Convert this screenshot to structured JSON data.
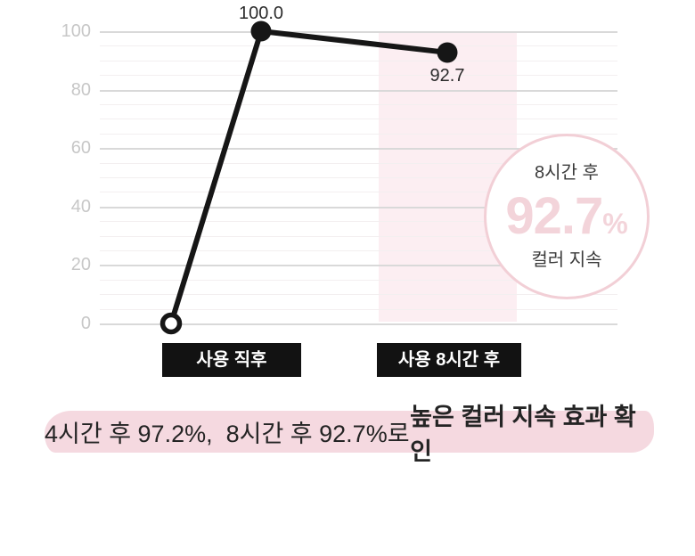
{
  "chart_data": {
    "type": "line",
    "categories": [
      "사용 직후",
      "사용 8시간 후"
    ],
    "values": [
      100.0,
      92.7
    ],
    "point_labels": [
      "100.0",
      "92.7"
    ],
    "baseline_value": 0,
    "ylim": [
      0,
      100
    ],
    "yticks": [
      0,
      20,
      40,
      60,
      80,
      100
    ],
    "minor_tick_step": 5,
    "grid": "on",
    "highlighted_category": "사용 8시간 후",
    "highlight_band_color": "#fceef2",
    "annotation": "4시간 후 97.2%, 8시간 후 92.7%로 높은 컬러 지속 효과 확인"
  },
  "badge": {
    "top_label": "8시간 후",
    "value": "92.7",
    "unit": "%",
    "bottom_label": "컬러 지속"
  },
  "caption": {
    "regular": "4시간 후 97.2%,  8시간 후 92.7%로 ",
    "bold": "높은 컬러 지속 효과 확인"
  },
  "colors": {
    "line": "#161616",
    "band": "#fceef2",
    "grid_major": "#d9d9d9",
    "grid_minor": "#f3eff0",
    "axis_label": "#c7c7c7",
    "point_label": "#2b2b2b",
    "badge_border": "#f2cfd6",
    "badge_value": "#f3d4da",
    "badge_label": "#3b3b3b",
    "category_bg": "#121212",
    "category_text": "#ffffff",
    "caption_highlight": "#f5d9e0",
    "caption_text": "#242424"
  }
}
